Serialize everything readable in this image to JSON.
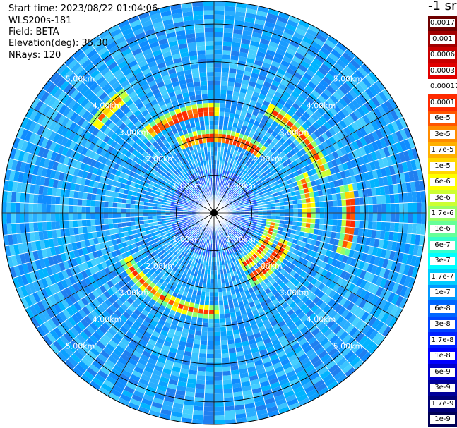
{
  "info": {
    "start_time": "Start time: 2023/08/22 01:04:06",
    "device": "WLS200s-181",
    "field": "Field: BETA",
    "elevation": "Elevation(deg): 35.30",
    "nrays": "NRays: 120"
  },
  "colorbar": {
    "unit": "-1 sr",
    "labels": [
      "0.0017",
      "0.001",
      "0.0006",
      "0.0003",
      "0.00017",
      "0.0001",
      "6e-5",
      "3e-5",
      "1.7e-5",
      "1e-5",
      "6e-6",
      "3e-6",
      "1.7e-6",
      "1e-6",
      "6e-7",
      "3e-7",
      "1.7e-7",
      "1e-7",
      "6e-8",
      "3e-8",
      "1.7e-8",
      "1e-8",
      "6e-9",
      "3e-9",
      "1.7e-9",
      "1e-9"
    ],
    "colors": [
      "#6e0000",
      "#a00000",
      "#c80000",
      "#e00000",
      "#ffffff",
      "#ff2a00",
      "#ff5500",
      "#ff8c00",
      "#ffb000",
      "#ffd700",
      "#ffff00",
      "#ccff33",
      "#99ff66",
      "#66ff99",
      "#33ffcc",
      "#00ffff",
      "#00ccff",
      "#0099ff",
      "#0066ff",
      "#0044ff",
      "#0022ff",
      "#0000ff",
      "#0000cc",
      "#000099",
      "#000077",
      "#000055"
    ]
  },
  "chart_data": {
    "type": "heatmap",
    "projection": "polar-ppi",
    "field": "BETA",
    "unit": "-1 sr",
    "nrays": 120,
    "range_rings_km": [
      1,
      2,
      3,
      4,
      5
    ],
    "ring_labels": [
      "1.00km",
      "2.00km",
      "3.00km",
      "4.00km",
      "5.00km"
    ],
    "max_range_km": 5.6,
    "background_level": "3e-8 to 1.7e-7",
    "high_backscatter_arcs": [
      {
        "range_km": 2.0,
        "azimuth_deg": [
          -25,
          35
        ],
        "level": "1e-5 to 3e-5"
      },
      {
        "range_km": 2.7,
        "azimuth_deg": [
          -40,
          0
        ],
        "level": "1e-5 to 3e-5"
      },
      {
        "range_km": 3.1,
        "azimuth_deg": [
          30,
          70
        ],
        "level": "1e-5 to 3e-5"
      },
      {
        "range_km": 3.9,
        "azimuth_deg": [
          -50,
          -38
        ],
        "level": "1.7e-6 to 1e-5"
      },
      {
        "range_km": 3.6,
        "azimuth_deg": [
          80,
          105
        ],
        "level": "1e-5 to 3e-5"
      },
      {
        "range_km": 2.5,
        "azimuth_deg": [
          70,
          100
        ],
        "level": "1e-5 to 3e-5"
      },
      {
        "range_km": 1.6,
        "azimuth_deg": [
          100,
          150
        ],
        "level": "1e-5 to 3e-5"
      },
      {
        "range_km": 2.0,
        "azimuth_deg": [
          115,
          150
        ],
        "level": "1e-5 to 3e-5"
      },
      {
        "range_km": 2.6,
        "azimuth_deg": [
          180,
          240
        ],
        "level": "1e-5 to 3e-5"
      }
    ]
  }
}
